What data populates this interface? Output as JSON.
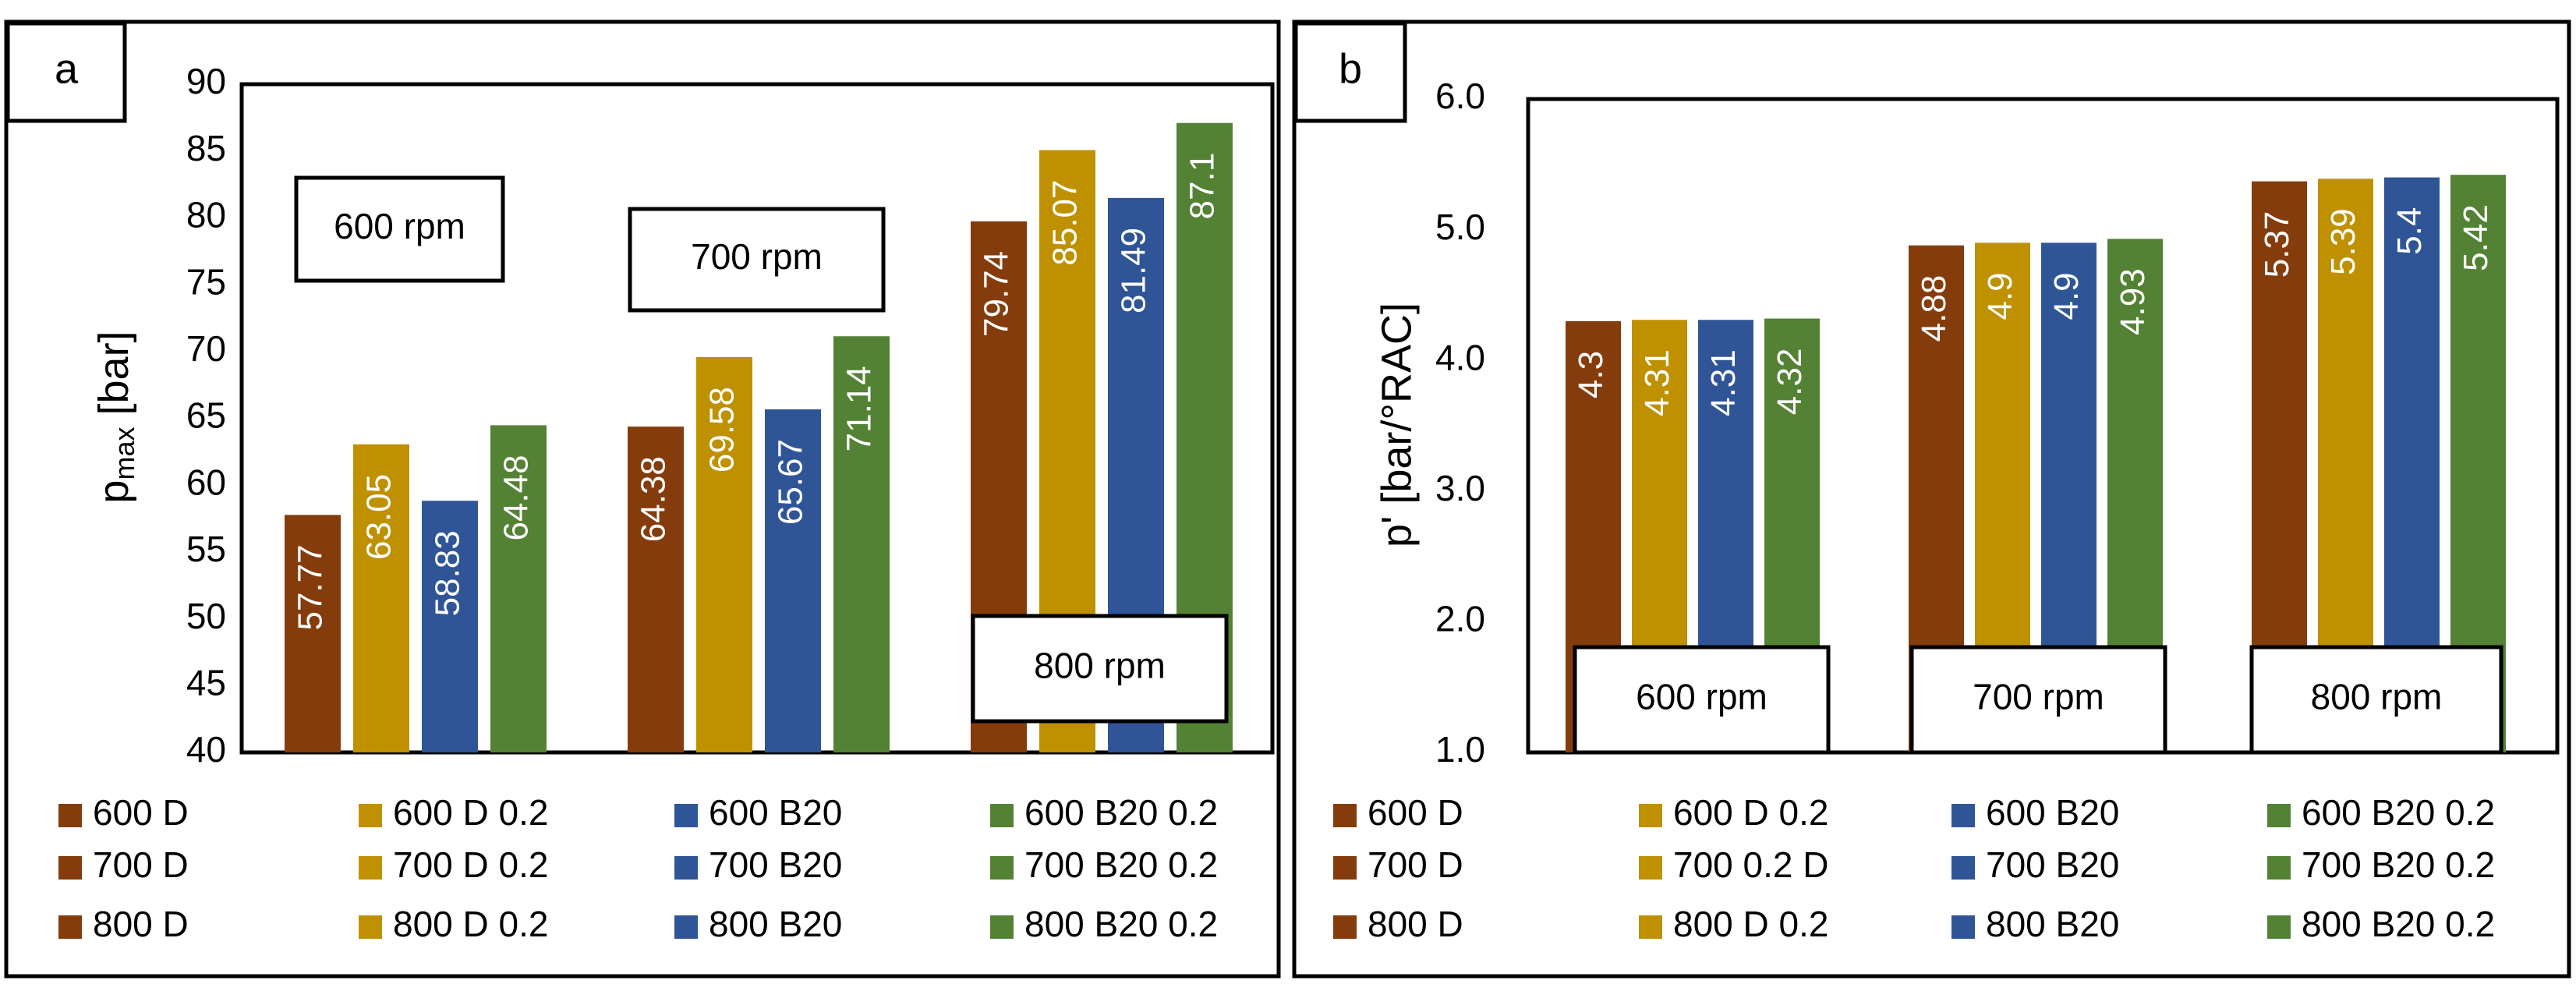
{
  "chart_data": [
    {
      "panel": "a",
      "type": "bar",
      "ylabel": "p",
      "ylabel_sub": "max",
      "ylabel_unit": " [bar]",
      "xlabel": "",
      "ylim": [
        40,
        90
      ],
      "yticks": [
        "40",
        "45",
        "50",
        "55",
        "60",
        "65",
        "70",
        "75",
        "80",
        "85",
        "90"
      ],
      "grid": false,
      "groups": [
        "600 rpm",
        "700 rpm",
        "800 rpm"
      ],
      "series": [
        {
          "name": "D",
          "color": "#843c0c",
          "values": [
            57.77,
            64.38,
            79.74
          ],
          "labels": [
            "57.77",
            "64.38",
            "79.74"
          ]
        },
        {
          "name": "D 0.2",
          "color": "#bf9000",
          "values": [
            63.05,
            69.58,
            85.07
          ],
          "labels": [
            "63.05",
            "69.58",
            "85.07"
          ]
        },
        {
          "name": "B20",
          "color": "#2f5597",
          "values": [
            58.83,
            65.67,
            81.49
          ],
          "labels": [
            "58.83",
            "65.67",
            "81.49"
          ]
        },
        {
          "name": "B20 0.2",
          "color": "#548235",
          "values": [
            64.48,
            71.14,
            87.1
          ],
          "labels": [
            "64.48",
            "71.14",
            "87.1"
          ]
        }
      ],
      "legend": [
        [
          "600 D",
          "600 D 0.2",
          "600 B20",
          "600 B20 0.2"
        ],
        [
          "700 D",
          "700 D 0.2",
          "700 B20",
          "700 B20 0.2"
        ],
        [
          "800 D",
          "800 D 0.2",
          "800 B20",
          "800 B20 0.2"
        ]
      ],
      "legend_placement": "bottom"
    },
    {
      "panel": "b",
      "type": "bar",
      "ylabel": "p' [bar/°RAC]",
      "xlabel": "",
      "ylim": [
        1.0,
        6.0
      ],
      "yticks": [
        "1.0",
        "2.0",
        "3.0",
        "4.0",
        "5.0",
        "6.0"
      ],
      "grid": false,
      "groups": [
        "600 rpm",
        "700 rpm",
        "800 rpm"
      ],
      "series": [
        {
          "name": "D",
          "color": "#843c0c",
          "values": [
            4.3,
            4.88,
            5.37
          ],
          "labels": [
            "4.3",
            "4.88",
            "5.37"
          ]
        },
        {
          "name": "D 0.2",
          "color": "#bf9000",
          "values": [
            4.31,
            4.9,
            5.39
          ],
          "labels": [
            "4.31",
            "4.9",
            "5.39"
          ]
        },
        {
          "name": "B20",
          "color": "#2f5597",
          "values": [
            4.31,
            4.9,
            5.4
          ],
          "labels": [
            "4.31",
            "4.9",
            "5.4"
          ]
        },
        {
          "name": "B20 0.2",
          "color": "#548235",
          "values": [
            4.32,
            4.93,
            5.42
          ],
          "labels": [
            "4.32",
            "4.93",
            "5.42"
          ]
        }
      ],
      "legend": [
        [
          "600 D",
          "600 D 0.2",
          "600 B20",
          "600 B20 0.2"
        ],
        [
          "700 D",
          "700 0.2 D",
          "700 B20",
          "700 B20 0.2"
        ],
        [
          "800 D",
          "800 D 0.2",
          "800 B20",
          "800 B20 0.2"
        ]
      ],
      "legend_placement": "bottom"
    }
  ]
}
